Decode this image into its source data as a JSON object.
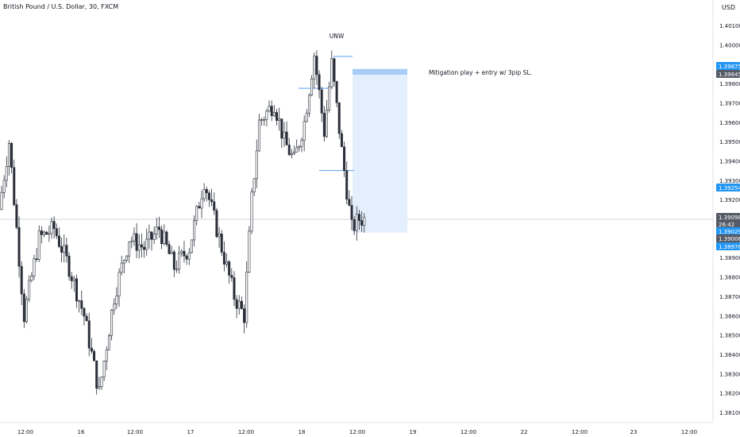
{
  "header": {
    "symbol_title": "British Pound / U.S. Dollar, 30, FXCM",
    "currency": "USD"
  },
  "colors": {
    "candle_up": "#ffffff",
    "candle_down": "#2a2e39",
    "wick": "#2a2e39",
    "level_line": "#5b9cf6",
    "zone_fill": "#e3effd",
    "zone_top": "#a9cdf7",
    "price_line": "#d1d4dc",
    "tag_blue": "#2196f3",
    "tag_dark": "#555b66"
  },
  "chart_data": {
    "type": "candlestick",
    "symbol": "GBPUSD",
    "timeframe": "30",
    "ylim": [
      1.3805,
      1.4045
    ],
    "y_ticks": [
      "1.40100",
      "1.40000",
      "1.39800",
      "1.39700",
      "1.39600",
      "1.39500",
      "1.39400",
      "1.39300",
      "1.39200",
      "1.38900",
      "1.38800",
      "1.38700",
      "1.38600",
      "1.38500",
      "1.38400",
      "1.38300",
      "1.38200",
      "1.38100"
    ],
    "x_ticks": [
      "12:00",
      "16",
      "12:00",
      "17",
      "12:00",
      "18",
      "12:00",
      "19",
      "12:00",
      "22",
      "12:00",
      "23",
      "12:00"
    ],
    "annotations": [
      {
        "text": "UNW",
        "x": "18 10:00",
        "y": 1.4015
      },
      {
        "text": "Mitigation play + entry w/ 3pip SL.",
        "x": "19 06:00",
        "y": 1.3985
      }
    ],
    "zones": [
      {
        "kind": "short-position",
        "x_start": "18 12:00",
        "x_end": "19 00:00",
        "top": 1.39875,
        "stop": 1.39845,
        "bottom": 1.39029
      }
    ],
    "levels": [
      {
        "price": 1.3994,
        "x_start": "18 10:00",
        "x_end": "18 11:30"
      },
      {
        "price": 1.39775,
        "x_start": "18 00:00",
        "x_end": "18 04:30"
      },
      {
        "price": 1.3935,
        "x_start": "18 03:00",
        "x_end": "18 05:30"
      }
    ],
    "price_tags": [
      {
        "label": "1.39875",
        "style": "blue"
      },
      {
        "label": "1.39845",
        "style": "dark"
      },
      {
        "label": "1.39254",
        "style": "blue"
      },
      {
        "label": "1.39098",
        "style": "dark"
      },
      {
        "label": "26:42",
        "style": "dark"
      },
      {
        "label": "1.39029",
        "style": "blue"
      },
      {
        "label": "1.39006",
        "style": "dark"
      },
      {
        "label": "1.38976",
        "style": "blue"
      }
    ],
    "last_price": 1.39098,
    "anchors": [
      {
        "t": 0,
        "p": 1.3915
      },
      {
        "t": 4,
        "p": 1.395
      },
      {
        "t": 10,
        "p": 1.386
      },
      {
        "t": 16,
        "p": 1.39
      },
      {
        "t": 22,
        "p": 1.3905
      },
      {
        "t": 28,
        "p": 1.3885
      },
      {
        "t": 34,
        "p": 1.386
      },
      {
        "t": 40,
        "p": 1.382
      },
      {
        "t": 46,
        "p": 1.387
      },
      {
        "t": 52,
        "p": 1.39
      },
      {
        "t": 58,
        "p": 1.3895
      },
      {
        "t": 64,
        "p": 1.3905
      },
      {
        "t": 70,
        "p": 1.3885
      },
      {
        "t": 76,
        "p": 1.3895
      },
      {
        "t": 82,
        "p": 1.393
      },
      {
        "t": 88,
        "p": 1.39
      },
      {
        "t": 94,
        "p": 1.387
      },
      {
        "t": 98,
        "p": 1.386
      },
      {
        "t": 101,
        "p": 1.392
      },
      {
        "t": 104,
        "p": 1.396
      },
      {
        "t": 110,
        "p": 1.397
      },
      {
        "t": 114,
        "p": 1.395
      },
      {
        "t": 118,
        "p": 1.394
      },
      {
        "t": 122,
        "p": 1.396
      },
      {
        "t": 126,
        "p": 1.3995
      },
      {
        "t": 130,
        "p": 1.3955
      },
      {
        "t": 133,
        "p": 1.399
      },
      {
        "t": 137,
        "p": 1.3945
      },
      {
        "t": 141,
        "p": 1.3905
      },
      {
        "t": 144,
        "p": 1.391
      }
    ]
  }
}
